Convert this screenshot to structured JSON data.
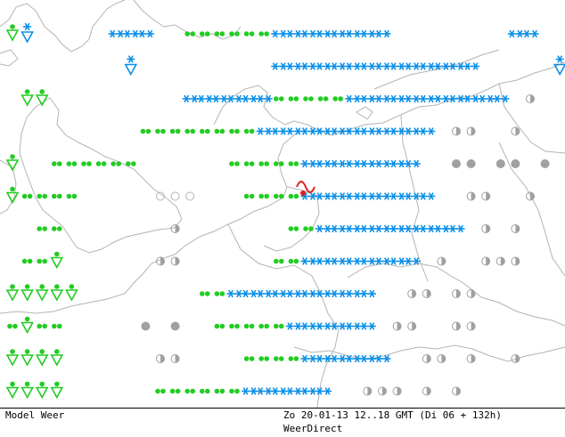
{
  "footer": {
    "left": "Model Weer",
    "right": "Zo 20-01-13 12..18 GMT (Di 06 + 132h)",
    "brand": "WeerDirect"
  },
  "colors": {
    "snow": "#0a8fe8",
    "rain": "#22cc22",
    "coast": "#b4b4b4",
    "grey": "#a0a0a0",
    "mark": "#e02020"
  },
  "legend_symbols": {
    "S": "snow",
    "r": "rain-drizzle",
    "d": "rain-showers",
    "v": "shower-cloud",
    "w": "snow-shower",
    "o": "clear",
    "h": "partly-cloudy",
    "c": "cloudy"
  },
  "weather_rows": [
    "vw.....SSS..rrrrrrSSSSSSSS........SS",
    "........w.........SSSSSSSSSSSSSS.....w",
    ".vv.........SSSSSSrrrrrSSSSSSSSSSS.h..",
    ".........rrrrrrrrSSSSSSSSSSSS.hh..h..",
    "v..rrrrrr......rrrrrSSSSSSSS..cc.cc.c",
    "vrrrr.....ooo...rrrrSSSSSSSSS..hh..h.",
    "..rr.......h.......rrSSSSSSSSSS.h.h..",
    ".rrv......hh......rrSSSSSSSS.h..hhh..",
    "vvvvv........rrSSSSSSSSSS..hh.hh....",
    "rvrr.....c.c..rrrrrSSSSSS.hh..hh....",
    "vvvv......hh....rrrrSSSSSS..hh.h..h.",
    "vvvv......rrrrrrSSSSSS..hhh.h.h..",
    "vvvvv.....rrrrrr..h..h..h..hh..."
  ]
}
